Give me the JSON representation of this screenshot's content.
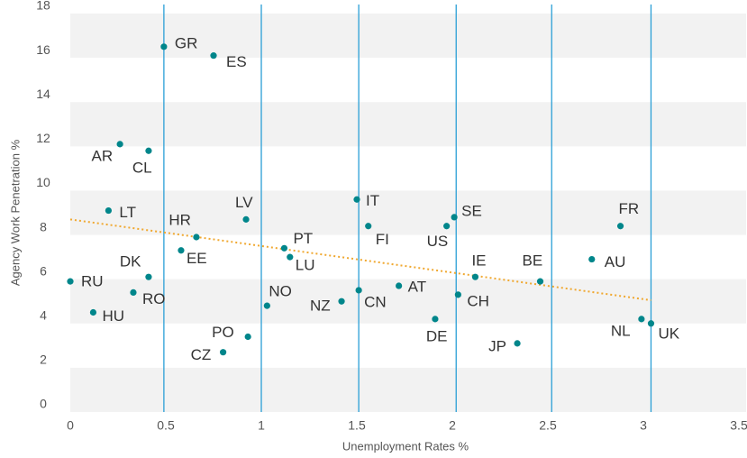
{
  "chart_data": {
    "type": "scatter",
    "x_label": "Unemployment Rates %",
    "y_label": "Agency Work Penetration %",
    "xlim": [
      0,
      3.5
    ],
    "xticks": [
      0,
      0.5,
      1,
      1.5,
      2,
      2.5,
      3,
      3.5
    ],
    "ylim": [
      0,
      18
    ],
    "yticks": [
      0,
      2,
      4,
      6,
      8,
      10,
      12,
      14,
      16,
      18
    ],
    "color": "#00868b",
    "reference_line_color": "#2a9fd6",
    "reference_lines_x": [
      0.49,
      1.0,
      1.51,
      2.02,
      2.52,
      3.04
    ],
    "trend_color": "#f0a830",
    "trend": {
      "x": [
        0,
        3.04
      ],
      "y": [
        8.7,
        5.05
      ]
    },
    "labels": [
      "GR",
      "ES",
      "AR",
      "CL",
      "LT",
      "LV",
      "HR",
      "EE",
      "IT",
      "FI",
      "SE",
      "US",
      "FR",
      "PT",
      "LU",
      "DK",
      "RU",
      "RO",
      "HU",
      "NO",
      "NZ",
      "CN",
      "AT",
      "IE",
      "BE",
      "AU",
      "CH",
      "DE",
      "JP",
      "NL",
      "UK",
      "PO",
      "CZ"
    ],
    "x": [
      0.49,
      0.75,
      0.26,
      0.41,
      0.2,
      0.92,
      0.66,
      0.58,
      1.5,
      1.56,
      2.01,
      1.97,
      2.88,
      1.12,
      1.15,
      0.41,
      0,
      0.33,
      0.12,
      1.03,
      1.42,
      1.51,
      1.72,
      2.12,
      2.46,
      2.73,
      2.03,
      1.91,
      2.34,
      2.99,
      3.04,
      0.93,
      0.8
    ],
    "values": [
      16.5,
      16.1,
      12.1,
      11.8,
      9.1,
      8.7,
      7.9,
      7.3,
      9.6,
      8.4,
      8.8,
      8.4,
      8.4,
      7.4,
      7.0,
      6.1,
      5.9,
      5.4,
      4.5,
      4.8,
      5.0,
      5.5,
      5.7,
      6.1,
      5.9,
      6.9,
      5.3,
      4.2,
      3.1,
      4.2,
      4.0,
      3.4,
      2.7
    ]
  }
}
